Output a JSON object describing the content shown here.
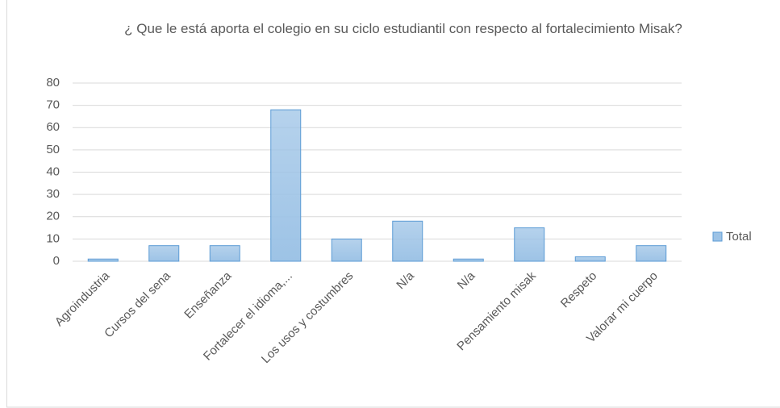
{
  "chart_data": {
    "type": "bar",
    "title": "¿ Que le está aporta el colegio en su ciclo estudiantil con respecto al fortalecimiento Misak?",
    "categories": [
      "Agroindustria",
      "Cursos del sena",
      "Enseñanza",
      "Fortalecer el idioma,...",
      "Los usos y costumbres",
      "N/a",
      "N/a",
      "Pensamiento misak",
      "Respeto",
      "Valorar mi cuerpo"
    ],
    "series": [
      {
        "name": "Total",
        "color": "#9dc3e6",
        "values": [
          1,
          7,
          7,
          68,
          10,
          18,
          1,
          15,
          2,
          7
        ]
      }
    ],
    "ylim": [
      0,
      80
    ],
    "yticks": [
      0,
      10,
      20,
      30,
      40,
      50,
      60,
      70,
      80
    ],
    "grid": true,
    "legend": "right"
  }
}
